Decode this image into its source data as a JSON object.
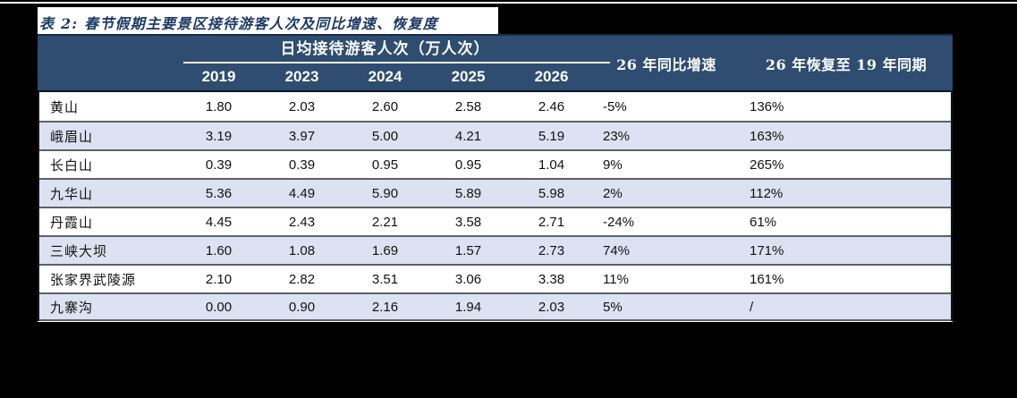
{
  "title": "表 2:  春节假期主要景区接待游客人次及同比增速、恢复度",
  "table": {
    "group_header": "日均接待游客人次（万人次）",
    "year_columns": [
      "2019",
      "2023",
      "2024",
      "2025",
      "2026"
    ],
    "growth_header": "26 年同比增速",
    "recovery_header": "26 年恢复至 19 年同期",
    "rows": [
      {
        "name": "黄山",
        "values": [
          "1.80",
          "2.03",
          "2.60",
          "2.58",
          "2.46"
        ],
        "growth": "-5%",
        "recovery": "136%"
      },
      {
        "name": "峨眉山",
        "values": [
          "3.19",
          "3.97",
          "5.00",
          "4.21",
          "5.19"
        ],
        "growth": "23%",
        "recovery": "163%"
      },
      {
        "name": "长白山",
        "values": [
          "0.39",
          "0.39",
          "0.95",
          "0.95",
          "1.04"
        ],
        "growth": "9%",
        "recovery": "265%"
      },
      {
        "name": "九华山",
        "values": [
          "5.36",
          "4.49",
          "5.90",
          "5.89",
          "5.98"
        ],
        "growth": "2%",
        "recovery": "112%"
      },
      {
        "name": "丹霞山",
        "values": [
          "4.45",
          "2.43",
          "2.21",
          "3.58",
          "2.71"
        ],
        "growth": "-24%",
        "recovery": "61%"
      },
      {
        "name": "三峡大坝",
        "values": [
          "1.60",
          "1.08",
          "1.69",
          "1.57",
          "2.73"
        ],
        "growth": "74%",
        "recovery": "171%"
      },
      {
        "name": "张家界武陵源",
        "values": [
          "2.10",
          "2.82",
          "3.51",
          "3.06",
          "3.38"
        ],
        "growth": "11%",
        "recovery": "161%"
      },
      {
        "name": "九寨沟",
        "values": [
          "0.00",
          "0.90",
          "2.16",
          "1.94",
          "2.03"
        ],
        "growth": "5%",
        "recovery": "/"
      }
    ]
  },
  "colors": {
    "header_bg": "#2e4d71",
    "alt_row_bg": "#dce2f1",
    "title_text": "#1c3a66",
    "canvas_bg": "#000000",
    "header_text": "#ffffff",
    "row_divider": "#5e6066"
  }
}
